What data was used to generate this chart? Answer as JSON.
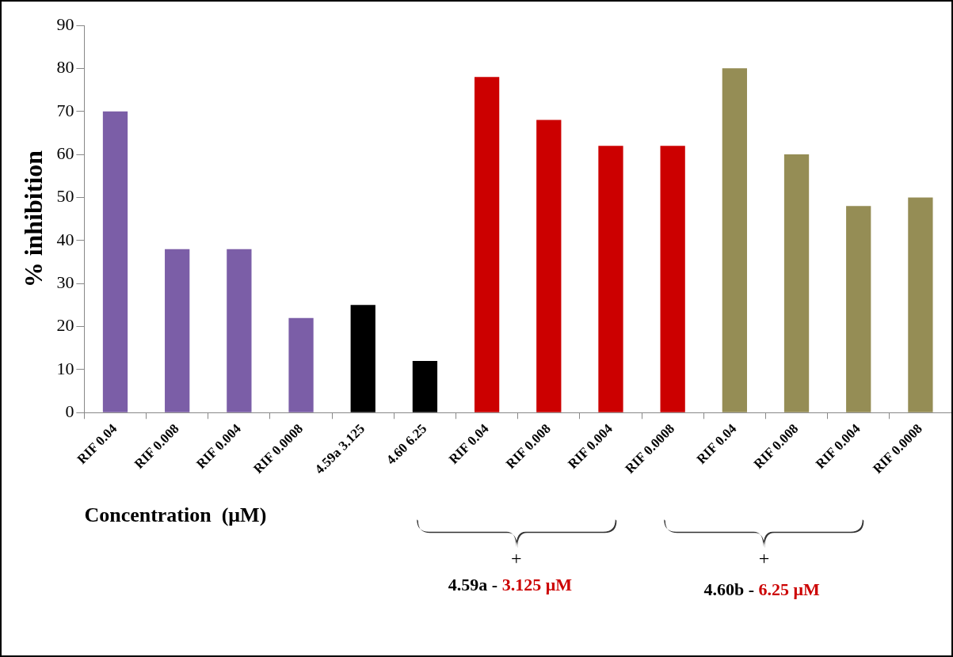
{
  "chart_data": {
    "type": "bar",
    "xlabel": "Concentration  (μM)",
    "ylabel": "% inhibition",
    "categories": [
      "RIF 0.04",
      "RIF 0.008",
      "RIF 0.004",
      "RIF 0.0008",
      "4.59a 3.125",
      "4.60 6.25",
      "RIF 0.04",
      "RIF 0.008",
      "RIF 0.004",
      "RIF 0.0008",
      "RIF 0.04",
      "RIF 0.008",
      "RIF 0.004",
      "RIF 0.0008"
    ],
    "values": [
      70,
      38,
      38,
      22,
      25,
      12,
      78,
      68,
      62,
      62,
      80,
      60,
      48,
      50
    ],
    "colors": [
      "#7b5ea7",
      "#7b5ea7",
      "#7b5ea7",
      "#7b5ea7",
      "#000000",
      "#000000",
      "#cc0000",
      "#cc0000",
      "#cc0000",
      "#cc0000",
      "#958d55",
      "#958d55",
      "#958d55",
      "#958d55"
    ],
    "ylim": [
      0,
      90
    ],
    "yticks": [
      0,
      10,
      20,
      30,
      40,
      50,
      60,
      70,
      80,
      90
    ],
    "grid": false,
    "legend": false,
    "annotations": [
      "+",
      "4.59a - 3.125 μM",
      "+",
      "4.60b - 6.25 μM"
    ]
  }
}
